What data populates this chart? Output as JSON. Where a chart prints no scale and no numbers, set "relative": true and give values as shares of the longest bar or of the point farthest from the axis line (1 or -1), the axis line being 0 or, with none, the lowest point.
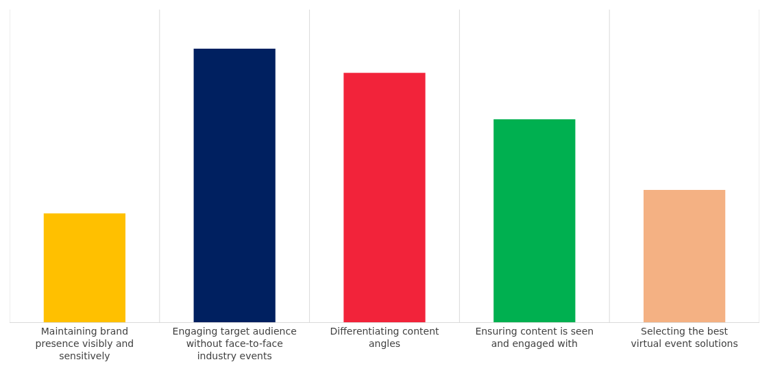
{
  "chart_data": {
    "type": "bar",
    "relative": true,
    "grid": "x",
    "categories": [
      "Maintaining brand presence visibly and sensitively",
      "Engaging target audience without face-to-face industry events",
      "Differentiating content angles",
      "Ensuring content is seen and engaged with",
      "Selecting the best virtual event solutions"
    ],
    "values": [
      0.398,
      1,
      0.912,
      0.742,
      0.484
    ],
    "colors": [
      "#ffc000",
      "#002060",
      "#f2233a",
      "#00b050",
      "#f4b183"
    ]
  }
}
